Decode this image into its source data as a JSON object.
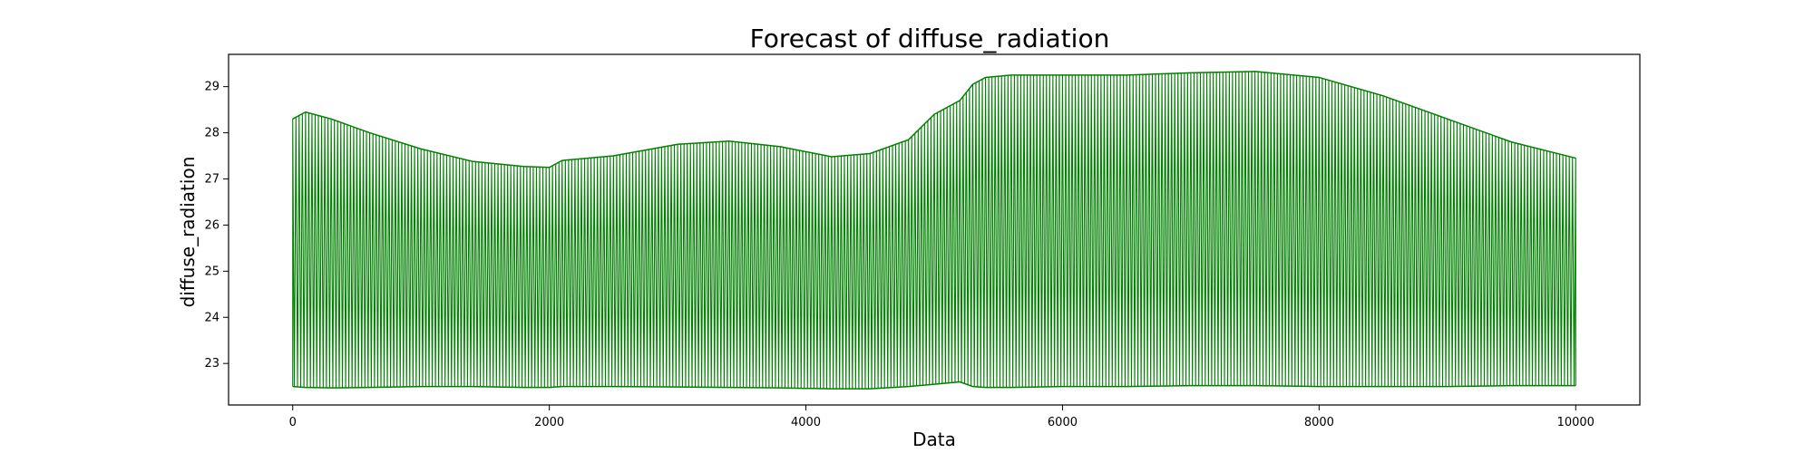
{
  "chart_data": {
    "type": "line",
    "title": "Forecast of diffuse_radiation",
    "xlabel": "Data",
    "ylabel": "diffuse_radiation",
    "xlim": [
      -500,
      10500
    ],
    "ylim": [
      22.1,
      29.7
    ],
    "x_ticks": [
      0,
      2000,
      4000,
      6000,
      8000,
      10000
    ],
    "y_ticks": [
      23,
      24,
      25,
      26,
      27,
      28,
      29
    ],
    "grid": false,
    "color": "#008000",
    "series": [
      {
        "x": [
          0,
          100,
          300,
          600,
          1000,
          1400,
          1800,
          2000,
          2100,
          2500,
          3000,
          3400,
          3800,
          4200,
          4500,
          4800,
          5000,
          5200,
          5300,
          5400,
          5600,
          6000,
          6500,
          7000,
          7500,
          8000,
          8500,
          9000,
          9500,
          10000
        ],
        "upper": [
          28.3,
          28.45,
          28.3,
          28.0,
          27.65,
          27.38,
          27.27,
          27.25,
          27.4,
          27.5,
          27.75,
          27.82,
          27.7,
          27.48,
          27.55,
          27.85,
          28.4,
          28.7,
          29.05,
          29.2,
          29.25,
          29.25,
          29.25,
          29.3,
          29.33,
          29.2,
          28.8,
          28.3,
          27.8,
          27.45
        ],
        "lower": [
          22.5,
          22.48,
          22.47,
          22.48,
          22.5,
          22.5,
          22.48,
          22.48,
          22.5,
          22.5,
          22.49,
          22.48,
          22.47,
          22.45,
          22.45,
          22.5,
          22.55,
          22.6,
          22.5,
          22.48,
          22.48,
          22.5,
          22.5,
          22.52,
          22.52,
          22.5,
          22.5,
          22.5,
          22.52,
          22.52
        ]
      }
    ]
  }
}
